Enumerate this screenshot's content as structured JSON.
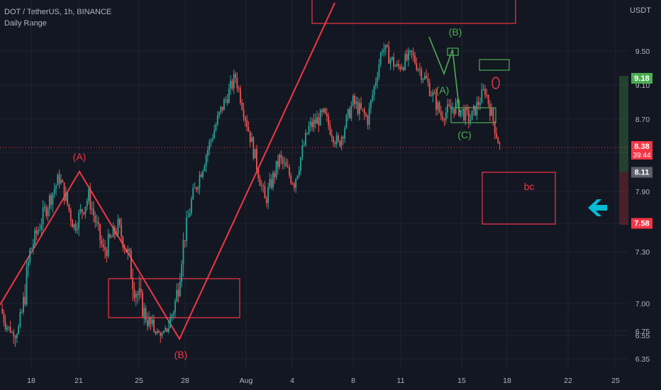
{
  "header": {
    "symbol_line": "DOT / TetherUS, 1h, BINANCE",
    "indicator": "Daily Range",
    "currency": "USDT"
  },
  "colors": {
    "background": "#131722",
    "up_candle": "#26a69a",
    "down_candle": "#ef5350",
    "red_annotation": "#f23645",
    "green_annotation": "#4caf50",
    "arrow": "#00bcd4"
  },
  "chart_data": {
    "type": "candlestick",
    "x_ticks": [
      "18",
      "21",
      "25",
      "28",
      "Aug",
      "4",
      "8",
      "11",
      "15",
      "18",
      "22",
      "25"
    ],
    "y_ticks": [
      9.5,
      9.1,
      8.7,
      8.3,
      7.9,
      7.5,
      7.3,
      7.0,
      6.75,
      6.55,
      6.35
    ],
    "ylim": [
      6.3,
      10.3
    ],
    "price_path": [
      {
        "x": "Jul 16",
        "y": 6.95
      },
      {
        "x": "Jul 17",
        "y": 6.6
      },
      {
        "x": "Jul 18",
        "y": 7.3
      },
      {
        "x": "Jul 19",
        "y": 7.7
      },
      {
        "x": "Jul 20",
        "y": 8.05
      },
      {
        "x": "Jul 21",
        "y": 7.55
      },
      {
        "x": "Jul 22",
        "y": 7.85
      },
      {
        "x": "Jul 23",
        "y": 7.3
      },
      {
        "x": "Jul 24",
        "y": 7.55
      },
      {
        "x": "Jul 25",
        "y": 7.15
      },
      {
        "x": "Jul 26",
        "y": 6.85
      },
      {
        "x": "Jul 27",
        "y": 6.6
      },
      {
        "x": "Jul 28",
        "y": 7.05
      },
      {
        "x": "Jul 29",
        "y": 7.8
      },
      {
        "x": "Jul 30",
        "y": 8.3
      },
      {
        "x": "Jul 31",
        "y": 8.8
      },
      {
        "x": "Aug 1",
        "y": 9.2
      },
      {
        "x": "Aug 2",
        "y": 8.5
      },
      {
        "x": "Aug 3",
        "y": 7.8
      },
      {
        "x": "Aug 4",
        "y": 8.25
      },
      {
        "x": "Aug 5",
        "y": 8.0
      },
      {
        "x": "Aug 6",
        "y": 8.6
      },
      {
        "x": "Aug 7",
        "y": 8.75
      },
      {
        "x": "Aug 8",
        "y": 8.4
      },
      {
        "x": "Aug 9",
        "y": 8.9
      },
      {
        "x": "Aug 10",
        "y": 8.7
      },
      {
        "x": "Aug 11",
        "y": 9.55
      },
      {
        "x": "Aug 12",
        "y": 9.3
      },
      {
        "x": "Aug 13",
        "y": 9.45
      },
      {
        "x": "Aug 14",
        "y": 9.15
      },
      {
        "x": "Aug 15",
        "y": 8.75
      },
      {
        "x": "Aug 16",
        "y": 8.85
      },
      {
        "x": "Aug 17",
        "y": 8.7
      },
      {
        "x": "Aug 17 18:00",
        "y": 9.05
      },
      {
        "x": "Aug 18",
        "y": 8.38
      }
    ],
    "price_labels": [
      {
        "value": 9.18,
        "text": "9.18",
        "color": "#4caf50"
      },
      {
        "value": 8.38,
        "text": "8.38",
        "subtext": "39:44",
        "color": "#f23645"
      },
      {
        "value": 8.11,
        "text": "8.11",
        "color": "#5d606b"
      },
      {
        "value": 7.58,
        "text": "7.58",
        "color": "#f23645"
      }
    ],
    "annotations": [
      {
        "text": "(A)",
        "color": "#f23645"
      },
      {
        "text": "(B)",
        "color": "#f23645"
      },
      {
        "text": "(B)",
        "color": "#4caf50"
      },
      {
        "text": "(A)",
        "color": "#4caf50"
      },
      {
        "text": "(C)",
        "color": "#4caf50"
      },
      {
        "text": "bc",
        "color": "#f23645"
      }
    ],
    "grid": true
  }
}
